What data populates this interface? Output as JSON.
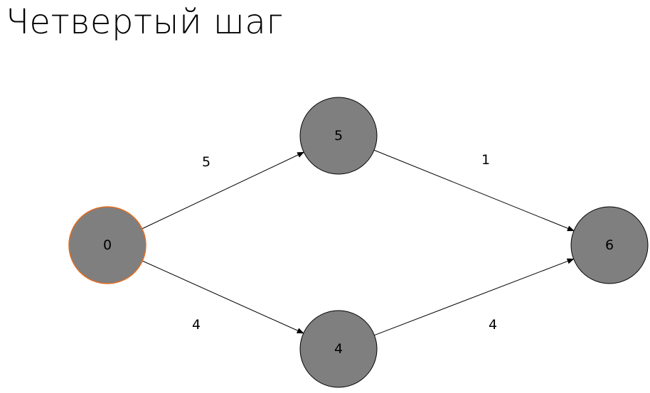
{
  "title": "Четвертый шаг",
  "colors": {
    "node_fill": "#7f7f7f",
    "node_stroke": "#000000",
    "start_node_stroke": "#e46c1f",
    "edge_stroke": "#000000"
  },
  "graph": {
    "nodes": [
      {
        "id": "n0",
        "label": "0",
        "start": true
      },
      {
        "id": "n5",
        "label": "5"
      },
      {
        "id": "n4",
        "label": "4"
      },
      {
        "id": "n6",
        "label": "6"
      }
    ],
    "edges": [
      {
        "id": "e0-5",
        "from": "n0",
        "to": "n5",
        "weight": "5"
      },
      {
        "id": "e0-4",
        "from": "n0",
        "to": "n4",
        "weight": "4"
      },
      {
        "id": "e5-6",
        "from": "n5",
        "to": "n6",
        "weight": "1"
      },
      {
        "id": "e4-6",
        "from": "n4",
        "to": "n6",
        "weight": "4"
      }
    ]
  }
}
